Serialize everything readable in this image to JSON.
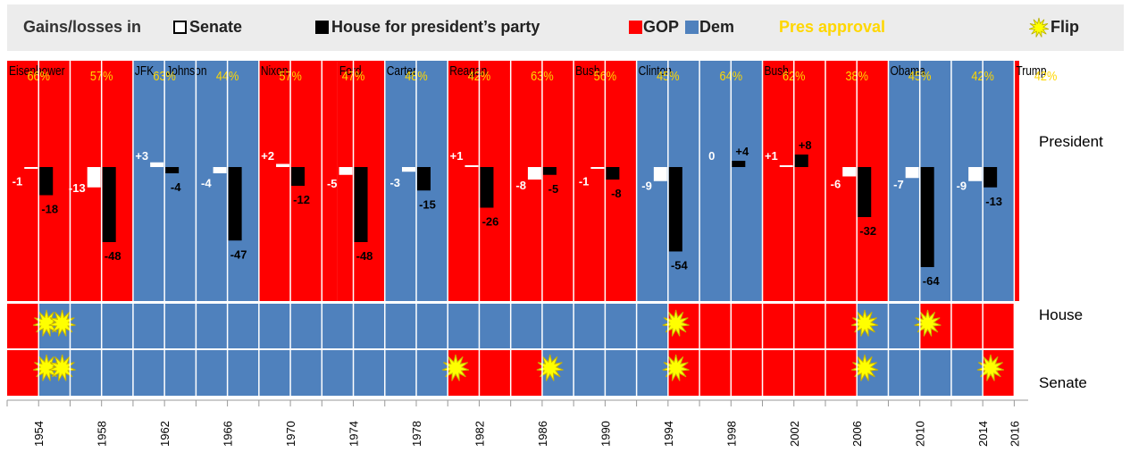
{
  "legend": {
    "title": "Gains/losses in",
    "senate_label": "Senate",
    "house_label": "House for president’s party",
    "gop_label": "GOP",
    "dem_label": "Dem",
    "approval_label": "Pres approval",
    "flip_label": "Flip"
  },
  "colors": {
    "gop": "#ff0000",
    "dem": "#4f81bd",
    "approval": "#ffd700",
    "flip": "#ffff00",
    "house_bar": "#000000",
    "senate_bar": "#ffffff"
  },
  "row_labels": {
    "president": "President",
    "house": "House",
    "senate": "Senate"
  },
  "chart_data": {
    "type": "bar",
    "x_ticks": [
      "1954",
      "1958",
      "1962",
      "1966",
      "1970",
      "1974",
      "1978",
      "1982",
      "1986",
      "1990",
      "1994",
      "1998",
      "2002",
      "2006",
      "2010",
      "2014",
      "2016"
    ],
    "presidents": [
      {
        "name": "Eisenhower",
        "party": "GOP",
        "from": 1953,
        "to": 1961
      },
      {
        "name": "JFK",
        "party": "Dem",
        "from": 1961,
        "to": 1963
      },
      {
        "name": "Johnson",
        "party": "Dem",
        "from": 1963,
        "to": 1969
      },
      {
        "name": "Nixon",
        "party": "GOP",
        "from": 1969,
        "to": 1974
      },
      {
        "name": "Ford",
        "party": "GOP",
        "from": 1974,
        "to": 1977
      },
      {
        "name": "Carter",
        "party": "Dem",
        "from": 1977,
        "to": 1981
      },
      {
        "name": "Reagan",
        "party": "GOP",
        "from": 1981,
        "to": 1989
      },
      {
        "name": "Bush",
        "party": "GOP",
        "from": 1989,
        "to": 1993
      },
      {
        "name": "Clinton",
        "party": "Dem",
        "from": 1993,
        "to": 2001
      },
      {
        "name": "Bush",
        "party": "GOP",
        "from": 2001,
        "to": 2009
      },
      {
        "name": "Obama",
        "party": "Dem",
        "from": 2009,
        "to": 2017
      },
      {
        "name": "Trump",
        "party": "GOP",
        "from": 2017,
        "to": 2018
      }
    ],
    "approval": [
      {
        "year": 1954,
        "label": "66%"
      },
      {
        "year": 1958,
        "label": "57%"
      },
      {
        "year": 1962,
        "label": "63%"
      },
      {
        "year": 1966,
        "label": "44%"
      },
      {
        "year": 1970,
        "label": "57%"
      },
      {
        "year": 1974,
        "label": "47%"
      },
      {
        "year": 1978,
        "label": "48%"
      },
      {
        "year": 1982,
        "label": "42%"
      },
      {
        "year": 1986,
        "label": "63%"
      },
      {
        "year": 1990,
        "label": "56%"
      },
      {
        "year": 1994,
        "label": "45%"
      },
      {
        "year": 1998,
        "label": "64%"
      },
      {
        "year": 2002,
        "label": "62%"
      },
      {
        "year": 2006,
        "label": "38%"
      },
      {
        "year": 2010,
        "label": "45%"
      },
      {
        "year": 2014,
        "label": "42%"
      },
      {
        "year": 2018,
        "label": "42%"
      }
    ],
    "senate_change": [
      {
        "year": 1954,
        "value": -1
      },
      {
        "year": 1958,
        "value": -13
      },
      {
        "year": 1962,
        "value": 3
      },
      {
        "year": 1966,
        "value": -4
      },
      {
        "year": 1970,
        "value": 2
      },
      {
        "year": 1974,
        "value": -5
      },
      {
        "year": 1978,
        "value": -3
      },
      {
        "year": 1982,
        "value": 1
      },
      {
        "year": 1986,
        "value": -8
      },
      {
        "year": 1990,
        "value": -1
      },
      {
        "year": 1994,
        "value": -9
      },
      {
        "year": 1998,
        "value": 0
      },
      {
        "year": 2002,
        "value": 1
      },
      {
        "year": 2006,
        "value": -6
      },
      {
        "year": 2010,
        "value": -7
      },
      {
        "year": 2014,
        "value": -9
      }
    ],
    "house_change": [
      {
        "year": 1954,
        "value": -18
      },
      {
        "year": 1958,
        "value": -48
      },
      {
        "year": 1962,
        "value": -4
      },
      {
        "year": 1966,
        "value": -47
      },
      {
        "year": 1970,
        "value": -12
      },
      {
        "year": 1974,
        "value": -48
      },
      {
        "year": 1978,
        "value": -15
      },
      {
        "year": 1982,
        "value": -26
      },
      {
        "year": 1986,
        "value": -5
      },
      {
        "year": 1990,
        "value": -8
      },
      {
        "year": 1994,
        "value": -54
      },
      {
        "year": 1998,
        "value": 4
      },
      {
        "year": 2002,
        "value": 8
      },
      {
        "year": 2006,
        "value": -32
      },
      {
        "year": 2010,
        "value": -64
      },
      {
        "year": 2014,
        "value": -13
      }
    ],
    "house_control": [
      {
        "from": 1953,
        "to": 1955,
        "party": "GOP"
      },
      {
        "from": 1955,
        "to": 1995,
        "party": "Dem"
      },
      {
        "from": 1995,
        "to": 2007,
        "party": "GOP"
      },
      {
        "from": 2007,
        "to": 2011,
        "party": "Dem"
      },
      {
        "from": 2011,
        "to": 2017,
        "party": "GOP"
      }
    ],
    "senate_control": [
      {
        "from": 1953,
        "to": 1955,
        "party": "GOP"
      },
      {
        "from": 1955,
        "to": 1981,
        "party": "Dem"
      },
      {
        "from": 1981,
        "to": 1987,
        "party": "GOP"
      },
      {
        "from": 1987,
        "to": 1995,
        "party": "Dem"
      },
      {
        "from": 1995,
        "to": 2007,
        "party": "GOP"
      },
      {
        "from": 2007,
        "to": 2015,
        "party": "Dem"
      },
      {
        "from": 2015,
        "to": 2017,
        "party": "GOP"
      }
    ],
    "house_flips": [
      1954,
      1955,
      1994,
      2006,
      2010
    ],
    "senate_flips": [
      1954,
      1955,
      1980,
      1986,
      1994,
      2006,
      2014
    ]
  }
}
